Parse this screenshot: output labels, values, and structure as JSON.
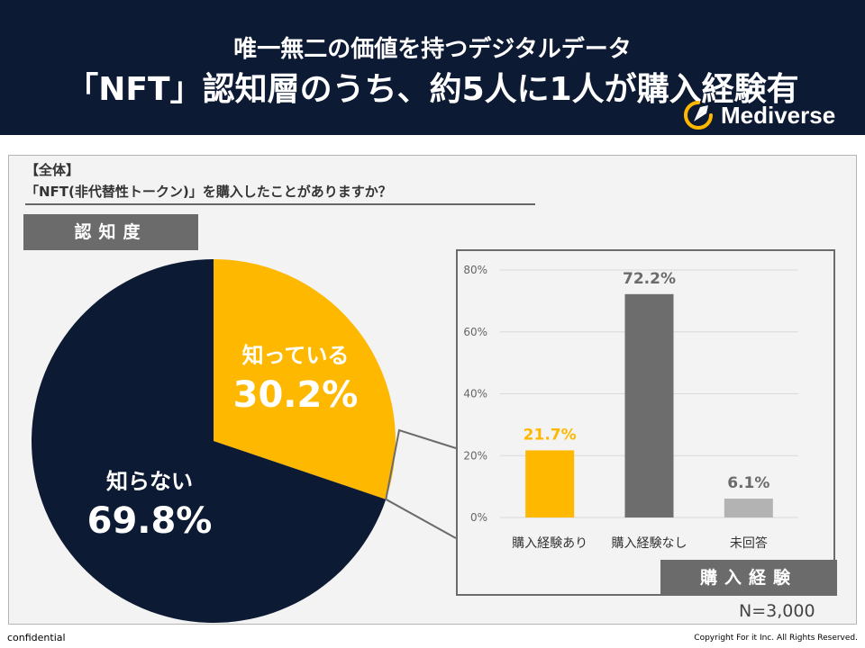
{
  "header": {
    "subtitle": "唯一無二の価値を持つデジタルデータ",
    "title": "「NFT」認知層のうち、約5人に1人が購入経験有",
    "brand": "Mediverse"
  },
  "question": {
    "tag": "【全体】",
    "text": "「NFT(非代替性トークン)」を購入したことがありますか？"
  },
  "awareness_label": "認知度",
  "purchase_label": "購入経験",
  "sample_size": "N=3,000",
  "footer": {
    "left": "confidential",
    "right": "Copyright For it Inc. All Rights Reserved."
  },
  "colors": {
    "navy": "#0d1a33",
    "gold": "#ffb800",
    "gray": "#6d6d6d",
    "light_gray": "#b3b3b3"
  },
  "chart_data": [
    {
      "type": "pie",
      "title": "認知度",
      "slices": [
        {
          "name": "知っている",
          "value": 30.2,
          "label": "30.2%"
        },
        {
          "name": "知らない",
          "value": 69.8,
          "label": "69.8%"
        }
      ]
    },
    {
      "type": "bar",
      "title": "購入経験",
      "categories": [
        "購入経験あり",
        "購入経験なし",
        "未回答"
      ],
      "values": [
        21.7,
        72.2,
        6.1
      ],
      "value_labels": [
        "21.7%",
        "72.2%",
        "6.1%"
      ],
      "ylim": [
        0,
        80
      ],
      "yticks": [
        0,
        20,
        40,
        60,
        80
      ],
      "ytick_labels": [
        "0%",
        "20%",
        "40%",
        "60%",
        "80%"
      ],
      "grid": true
    }
  ]
}
